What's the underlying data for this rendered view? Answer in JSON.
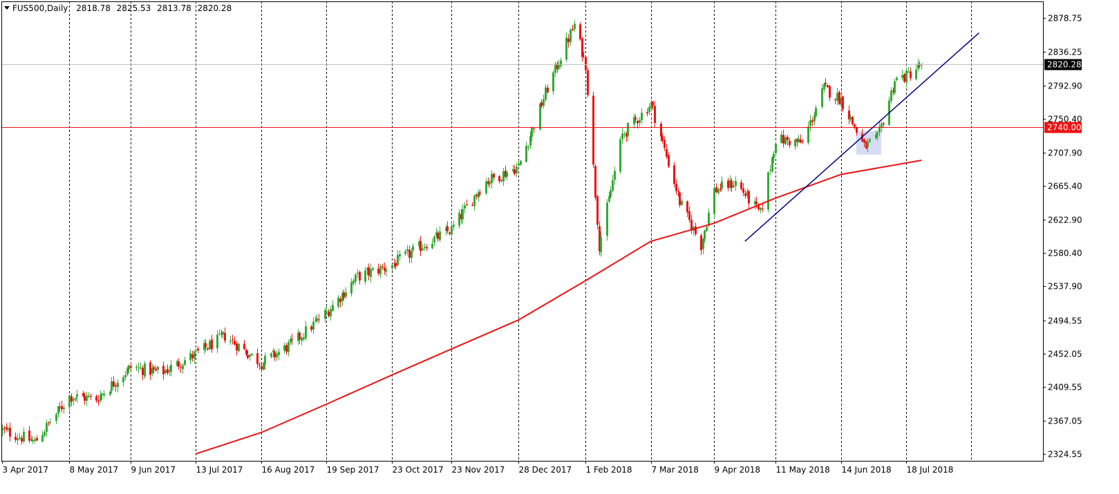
{
  "chart_data": {
    "type": "candlestick",
    "header": {
      "symbol": "FUS500,Daily",
      "open": "2818.78",
      "high": "2825.53",
      "low": "2813.78",
      "close": "2820.28"
    },
    "y_ticks": [
      "2878.75",
      "2836.25",
      "2792.90",
      "2750.40",
      "2707.90",
      "2665.40",
      "2622.90",
      "2580.40",
      "2537.90",
      "2494.55",
      "2452.05",
      "2409.55",
      "2367.05",
      "2324.55"
    ],
    "ylim": [
      2316,
      2900
    ],
    "x_ticks": [
      "3 Apr 2017",
      "8 May 2017",
      "9 Jun 2017",
      "13 Jul 2017",
      "16 Aug 2017",
      "19 Sep 2017",
      "23 Oct 2017",
      "23 Nov 2017",
      "28 Dec 2017",
      "1 Feb 2018",
      "7 Mar 2018",
      "9 Apr 2018",
      "11 May 2018",
      "14 Jun 2018",
      "18 Jul 2018"
    ],
    "current_price_label": "2820.28",
    "current_price": 2820.28,
    "level_line_label": "2740.00",
    "level_line": 2740.0,
    "price_path": [
      {
        "date": "3 Apr 2017",
        "close": 2355
      },
      {
        "date": "20 Apr 2017",
        "close": 2340
      },
      {
        "date": "8 May 2017",
        "close": 2398
      },
      {
        "date": "22 May 2017",
        "close": 2395
      },
      {
        "date": "9 Jun 2017",
        "close": 2435
      },
      {
        "date": "25 Jun 2017",
        "close": 2428
      },
      {
        "date": "13 Jul 2017",
        "close": 2452
      },
      {
        "date": "28 Jul 2017",
        "close": 2475
      },
      {
        "date": "16 Aug 2017",
        "close": 2440
      },
      {
        "date": "1 Sep 2017",
        "close": 2465
      },
      {
        "date": "19 Sep 2017",
        "close": 2505
      },
      {
        "date": "5 Oct 2017",
        "close": 2550
      },
      {
        "date": "23 Oct 2017",
        "close": 2565
      },
      {
        "date": "8 Nov 2017",
        "close": 2590
      },
      {
        "date": "23 Nov 2017",
        "close": 2610
      },
      {
        "date": "10 Dec 2017",
        "close": 2670
      },
      {
        "date": "28 Dec 2017",
        "close": 2690
      },
      {
        "date": "12 Jan 2018",
        "close": 2790
      },
      {
        "date": "26 Jan 2018",
        "close": 2870
      },
      {
        "date": "1 Feb 2018",
        "close": 2820
      },
      {
        "date": "8 Feb 2018",
        "close": 2590
      },
      {
        "date": "20 Feb 2018",
        "close": 2730
      },
      {
        "date": "7 Mar 2018",
        "close": 2770
      },
      {
        "date": "22 Mar 2018",
        "close": 2645
      },
      {
        "date": "2 Apr 2018",
        "close": 2590
      },
      {
        "date": "9 Apr 2018",
        "close": 2660
      },
      {
        "date": "20 Apr 2018",
        "close": 2670
      },
      {
        "date": "3 May 2018",
        "close": 2630
      },
      {
        "date": "11 May 2018",
        "close": 2725
      },
      {
        "date": "25 May 2018",
        "close": 2720
      },
      {
        "date": "5 Jun 2018",
        "close": 2790
      },
      {
        "date": "14 Jun 2018",
        "close": 2775
      },
      {
        "date": "26 Jun 2018",
        "close": 2715
      },
      {
        "date": "3 Jul 2018",
        "close": 2725
      },
      {
        "date": "12 Jul 2018",
        "close": 2800
      },
      {
        "date": "18 Jul 2018",
        "close": 2805
      },
      {
        "date": "26 Jul 2018",
        "close": 2820
      }
    ],
    "moving_average": [
      {
        "date": "13 Jul 2017",
        "value": 2325
      },
      {
        "date": "16 Aug 2017",
        "value": 2352
      },
      {
        "date": "19 Sep 2017",
        "value": 2388
      },
      {
        "date": "23 Oct 2017",
        "value": 2425
      },
      {
        "date": "23 Nov 2017",
        "value": 2458
      },
      {
        "date": "28 Dec 2017",
        "value": 2495
      },
      {
        "date": "1 Feb 2018",
        "value": 2545
      },
      {
        "date": "7 Mar 2018",
        "value": 2595
      },
      {
        "date": "9 Apr 2018",
        "value": 2618
      },
      {
        "date": "11 May 2018",
        "value": 2650
      },
      {
        "date": "14 Jun 2018",
        "value": 2680
      },
      {
        "date": "26 Jul 2018",
        "value": 2698
      }
    ],
    "trendline": {
      "from": {
        "date": "25 Apr 2018",
        "value": 2595
      },
      "to": {
        "date": "25 Aug 2018",
        "value": 2860
      }
    },
    "highlight_zone": {
      "from_date": "22 Jun 2018",
      "to_date": "5 Jul 2018",
      "low": 2705,
      "high": 2735
    },
    "colors": {
      "bull": "#33aa33",
      "bear": "#ee1111",
      "moving_average": "#ee1111",
      "level_line": "#ee1111",
      "trendline": "#000080",
      "current_price_line": "#c0c0c0",
      "current_price_tag": "#000000",
      "level_tag": "#ee1111",
      "highlight": "#c8d0f0",
      "grid": "#000000"
    }
  }
}
